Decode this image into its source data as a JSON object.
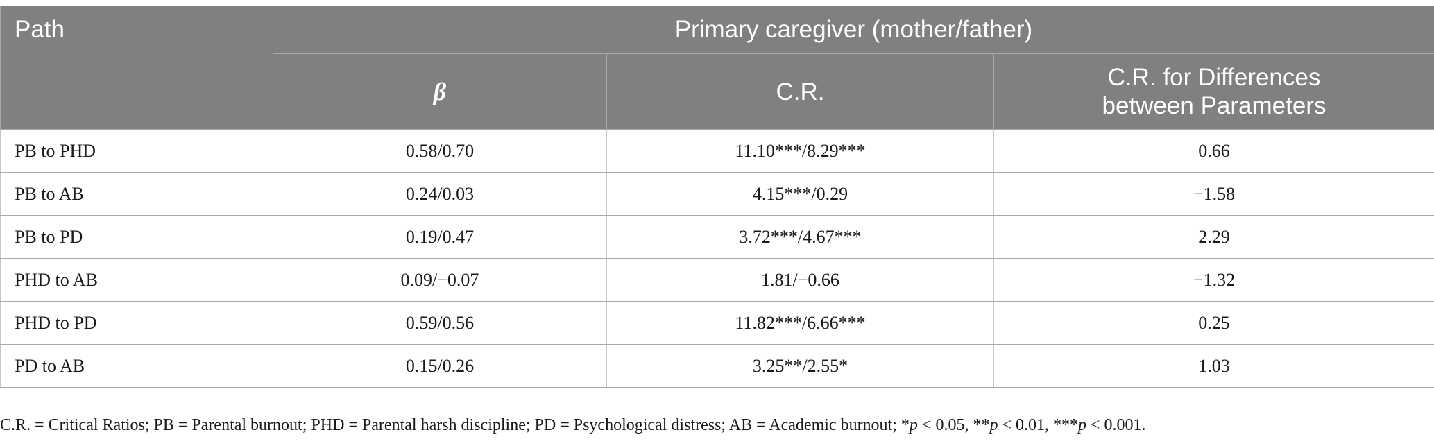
{
  "table": {
    "header": {
      "path": "Path",
      "group": "Primary caregiver (mother/father)",
      "beta": "β",
      "cr": "C.R.",
      "diff": "C.R. for Differences between Parameters"
    },
    "rows": [
      {
        "path": "PB to PHD",
        "beta": "0.58/0.70",
        "cr": "11.10***/8.29***",
        "diff": "0.66"
      },
      {
        "path": "PB to AB",
        "beta": "0.24/0.03",
        "cr": "4.15***/0.29",
        "diff": "−1.58"
      },
      {
        "path": "PB to PD",
        "beta": "0.19/0.47",
        "cr": "3.72***/4.67***",
        "diff": "2.29"
      },
      {
        "path": "PHD to AB",
        "beta": "0.09/−0.07",
        "cr": "1.81/−0.66",
        "diff": "−1.32"
      },
      {
        "path": "PHD to PD",
        "beta": "0.59/0.56",
        "cr": "11.82***/6.66***",
        "diff": "0.25"
      },
      {
        "path": "PD to AB",
        "beta": "0.15/0.26",
        "cr": "3.25**/2.55*",
        "diff": "1.03"
      }
    ]
  },
  "footnote": {
    "definitions": "C.R. = Critical Ratios; PB = Parental burnout; PHD = Parental harsh discipline; PD = Psychological distress; AB = Academic burnout; ",
    "sig1_stars": "*",
    "sig1_p": "p",
    "sig1_rest": " < 0.05, ",
    "sig2_stars": "**",
    "sig2_p": "p",
    "sig2_rest": " < 0.01, ",
    "sig3_stars": "***",
    "sig3_p": "p",
    "sig3_rest": " < 0.001."
  }
}
